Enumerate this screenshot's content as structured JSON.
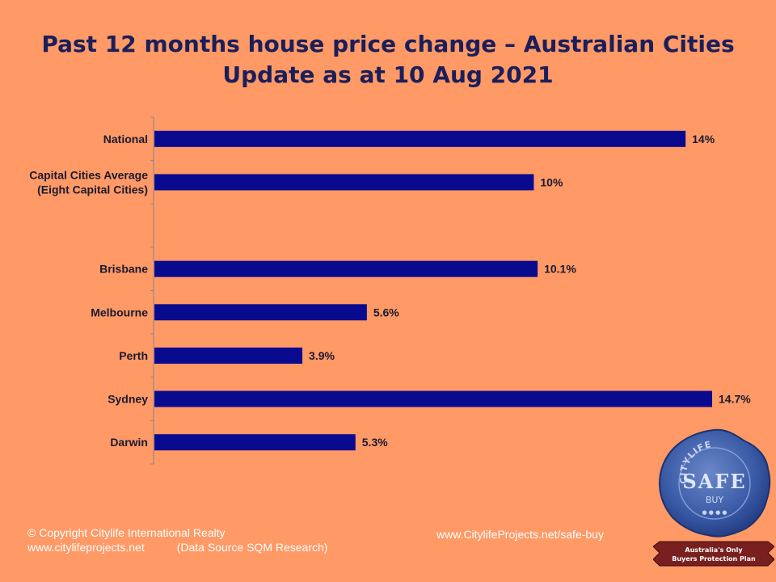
{
  "title": {
    "line1": "Past 12 months house price change – Australian Cities",
    "line2": "Update as at  10 Aug 2021"
  },
  "chart_data": {
    "type": "bar",
    "orientation": "horizontal",
    "categories": [
      [
        "National"
      ],
      [
        "Capital Cities Average",
        "(Eight Capital Cities)"
      ],
      [],
      [
        "Brisbane"
      ],
      [
        "Melbourne"
      ],
      [
        "Perth"
      ],
      [
        "Sydney"
      ],
      [
        "Darwin"
      ]
    ],
    "values": [
      14,
      10,
      null,
      10.1,
      5.6,
      3.9,
      14.7,
      5.3
    ],
    "data_labels": [
      "14%",
      "10%",
      "",
      "10.1%",
      "5.6%",
      "3.9%",
      "14.7%",
      "5.3%"
    ],
    "xlim": [
      0,
      14.7
    ],
    "bar_color": "#0a0a8f",
    "grid": false,
    "legend": "none"
  },
  "footer": {
    "copyright": "© Copyright Citylife International  Realty",
    "website": "www.citylifeprojects.net",
    "source": "(Data Source SQM Research)",
    "safe_buy_url": "www.CitylifeProjects.net/safe-buy"
  },
  "seal": {
    "arc_text": "CITYLIFE",
    "main_text": "SAFE",
    "sub_text": "BUY",
    "ribbon_line1": "Australia's Only",
    "ribbon_line2": "Buyers Protection Plan"
  }
}
